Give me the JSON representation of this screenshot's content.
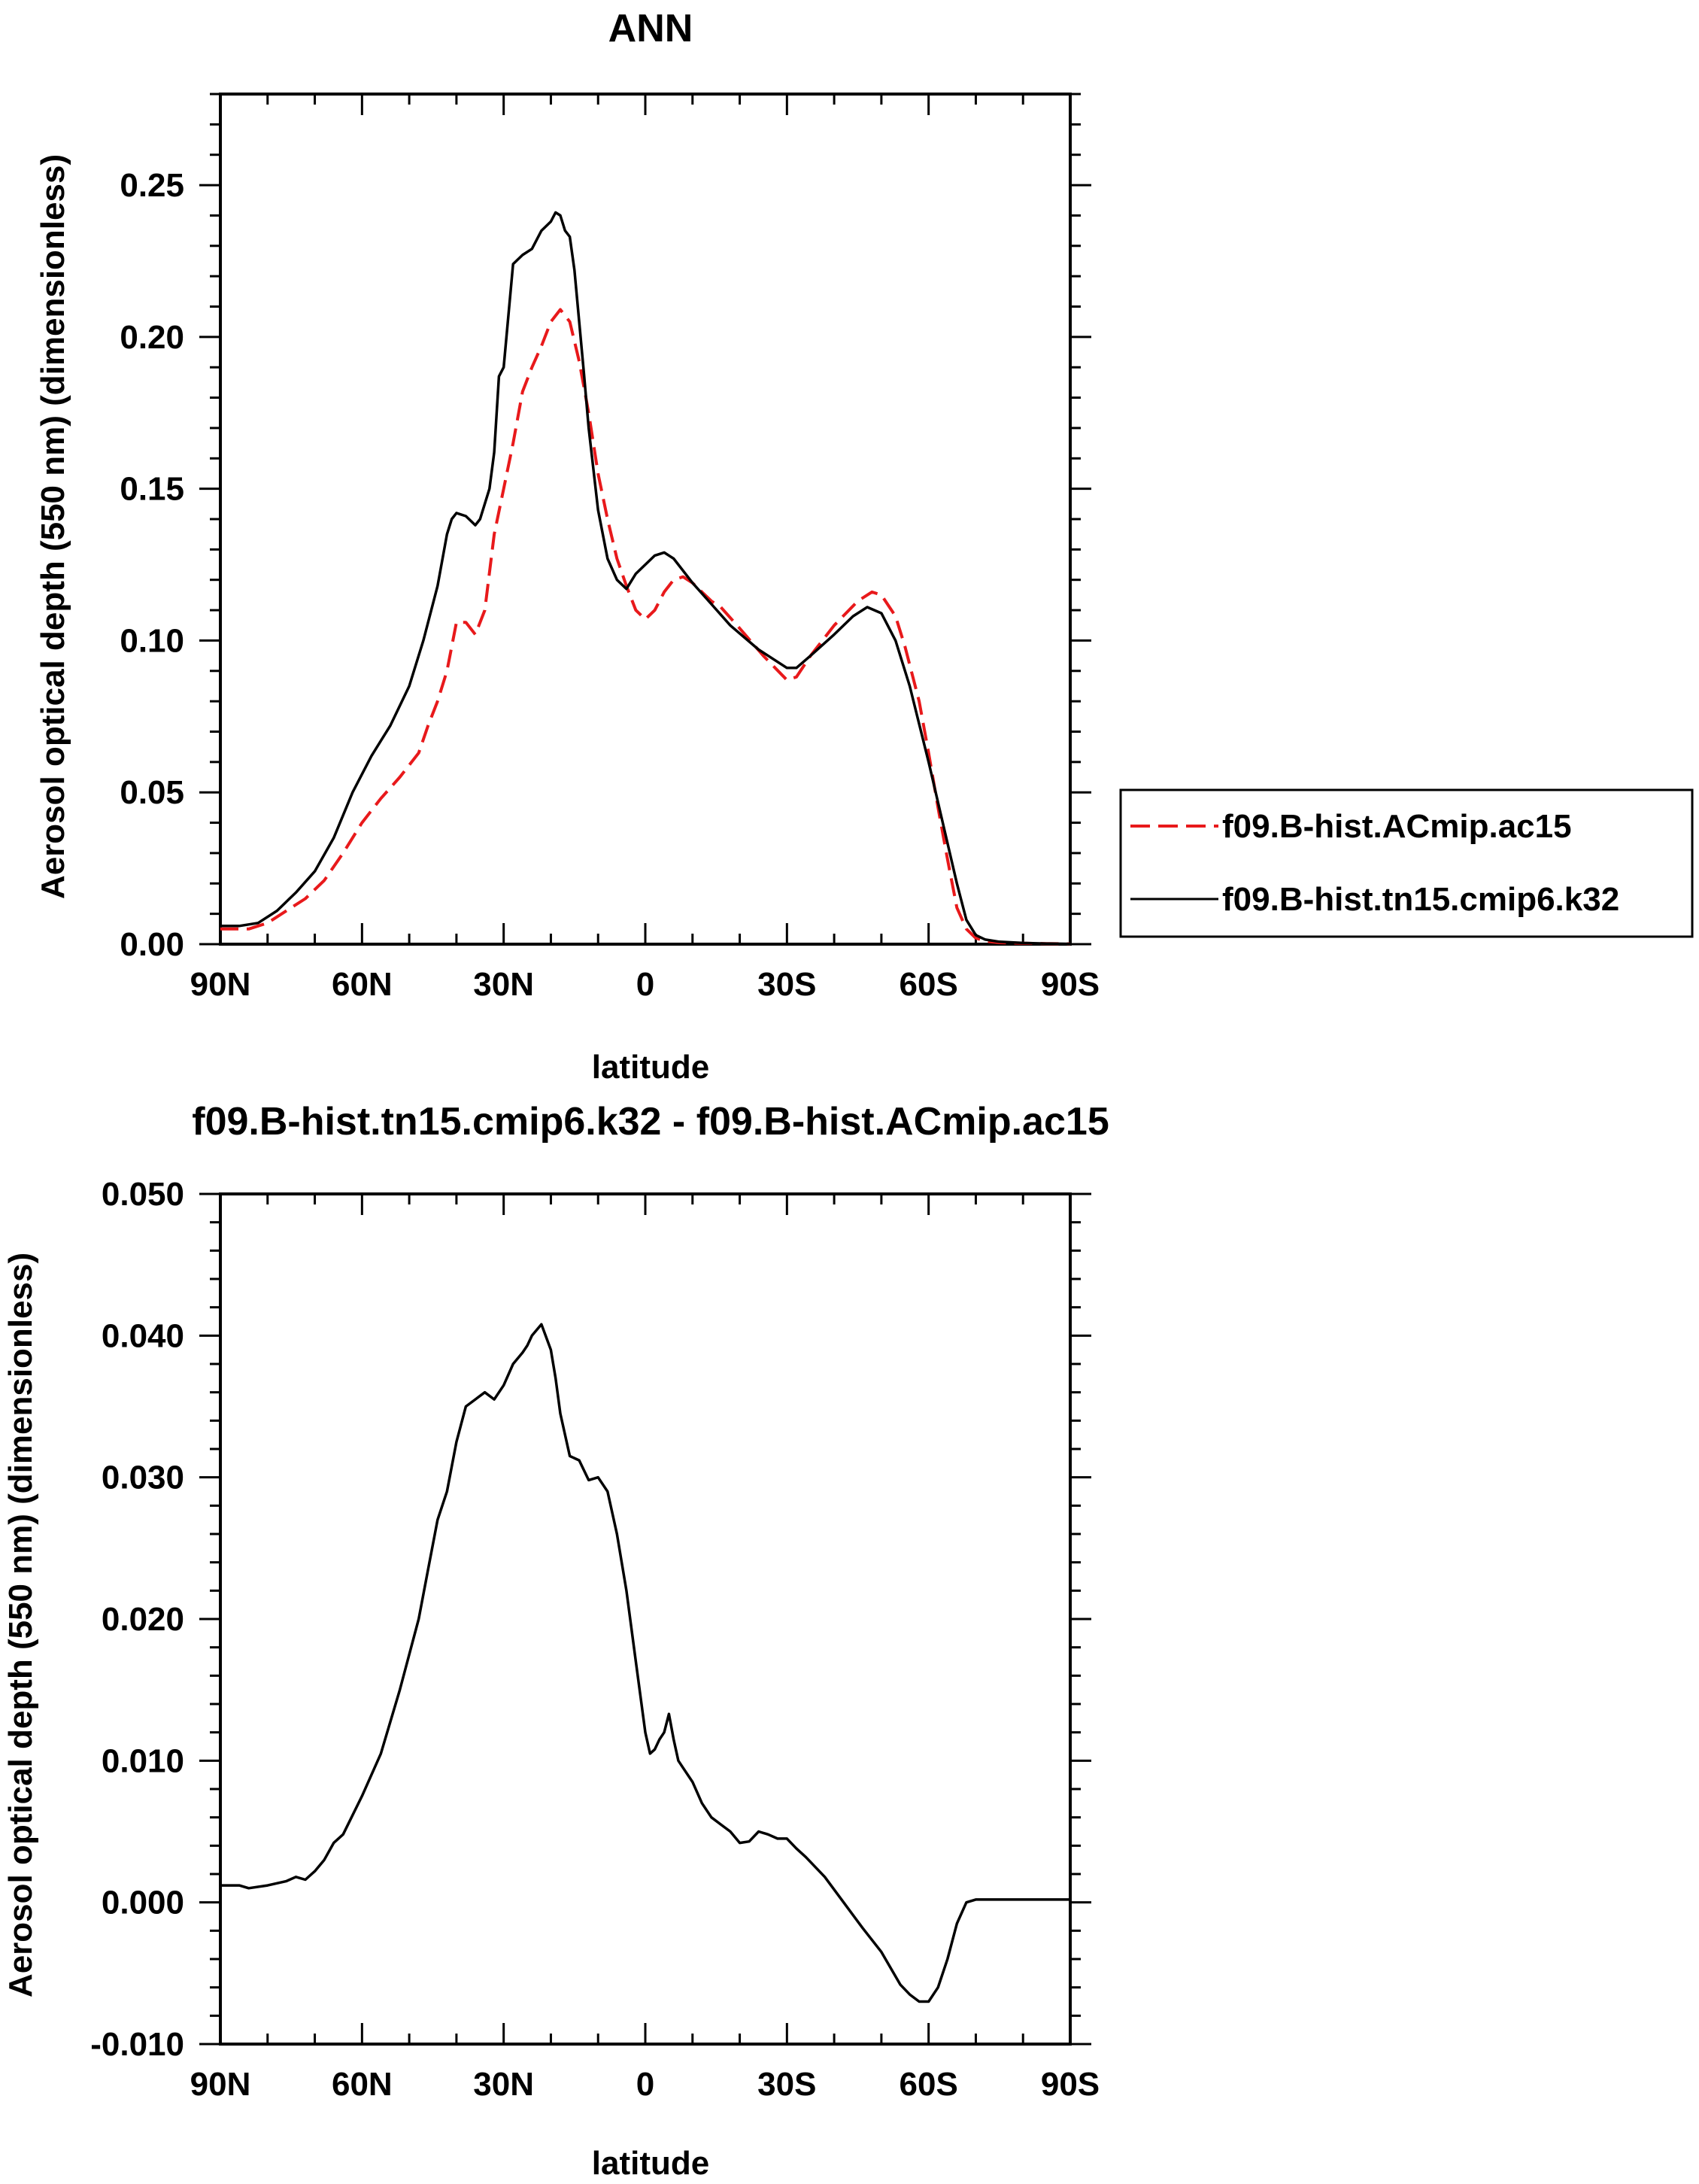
{
  "chart_data": [
    {
      "type": "line",
      "title": "ANN",
      "xlabel": "latitude",
      "ylabel": "Aerosol optical depth (550 nm) (dimensionless)",
      "xlim": [
        90,
        -90
      ],
      "ylim": [
        0,
        0.28
      ],
      "xticks": [
        {
          "value": 90,
          "label": "90N"
        },
        {
          "value": 60,
          "label": "60N"
        },
        {
          "value": 30,
          "label": "30N"
        },
        {
          "value": 0,
          "label": "0"
        },
        {
          "value": -30,
          "label": "30S"
        },
        {
          "value": -60,
          "label": "60S"
        },
        {
          "value": -90,
          "label": "90S"
        }
      ],
      "yticks": [
        {
          "value": 0.0,
          "label": "0.00"
        },
        {
          "value": 0.05,
          "label": "0.05"
        },
        {
          "value": 0.1,
          "label": "0.10"
        },
        {
          "value": 0.15,
          "label": "0.15"
        },
        {
          "value": 0.2,
          "label": "0.20"
        },
        {
          "value": 0.25,
          "label": "0.25"
        }
      ],
      "legend_position": "right",
      "series": [
        {
          "name": "f09.B-hist.ACmip.ac15",
          "color": "#e8191b",
          "dash": "dashed",
          "x": [
            90,
            84,
            80,
            76,
            72,
            68,
            64,
            60,
            56,
            52,
            48,
            46,
            44,
            42,
            40,
            38,
            36,
            34,
            32,
            30,
            28,
            26,
            24,
            22,
            20,
            18,
            16,
            14,
            12,
            10,
            8,
            6,
            4,
            2,
            0,
            -2,
            -4,
            -6,
            -8,
            -10,
            -12,
            -14,
            -16,
            -20,
            -25,
            -30,
            -32,
            -35,
            -40,
            -45,
            -48,
            -50,
            -53,
            -55,
            -58,
            -60,
            -62,
            -64,
            -66,
            -68,
            -70,
            -72,
            -75,
            -80,
            -85,
            -90
          ],
          "values": [
            0.005,
            0.005,
            0.007,
            0.011,
            0.015,
            0.021,
            0.03,
            0.04,
            0.048,
            0.055,
            0.063,
            0.072,
            0.08,
            0.09,
            0.106,
            0.106,
            0.102,
            0.11,
            0.135,
            0.15,
            0.165,
            0.182,
            0.19,
            0.197,
            0.205,
            0.209,
            0.205,
            0.192,
            0.175,
            0.155,
            0.14,
            0.127,
            0.118,
            0.11,
            0.107,
            0.11,
            0.116,
            0.12,
            0.121,
            0.119,
            0.116,
            0.113,
            0.111,
            0.104,
            0.095,
            0.087,
            0.088,
            0.095,
            0.105,
            0.113,
            0.116,
            0.115,
            0.108,
            0.098,
            0.08,
            0.063,
            0.045,
            0.028,
            0.012,
            0.005,
            0.002,
            0.001,
            0.0005,
            0.0003,
            0.0002,
            0.0001
          ]
        },
        {
          "name": "f09.B-hist.tn15.cmip6.k32",
          "color": "#000000",
          "dash": "solid",
          "x": [
            90,
            86,
            82,
            78,
            74,
            70,
            66,
            62,
            58,
            54,
            50,
            47,
            44,
            42,
            41,
            40,
            38,
            36,
            35,
            33,
            32,
            31,
            30,
            28,
            26,
            24,
            22,
            20,
            19,
            18,
            17,
            16,
            15,
            14,
            13,
            12,
            10,
            8,
            6,
            4,
            2,
            0,
            -2,
            -4,
            -6,
            -8,
            -10,
            -14,
            -18,
            -24,
            -30,
            -32,
            -35,
            -40,
            -44,
            -47,
            -50,
            -53,
            -56,
            -60,
            -63,
            -66,
            -68,
            -70,
            -72,
            -75,
            -80,
            -85,
            -90
          ],
          "values": [
            0.006,
            0.006,
            0.007,
            0.011,
            0.017,
            0.024,
            0.035,
            0.05,
            0.062,
            0.072,
            0.085,
            0.1,
            0.118,
            0.135,
            0.14,
            0.142,
            0.141,
            0.138,
            0.14,
            0.15,
            0.162,
            0.187,
            0.19,
            0.224,
            0.227,
            0.229,
            0.235,
            0.238,
            0.241,
            0.24,
            0.235,
            0.233,
            0.222,
            0.205,
            0.188,
            0.17,
            0.143,
            0.127,
            0.12,
            0.117,
            0.122,
            0.125,
            0.128,
            0.129,
            0.127,
            0.123,
            0.119,
            0.112,
            0.105,
            0.097,
            0.091,
            0.091,
            0.095,
            0.102,
            0.108,
            0.111,
            0.109,
            0.1,
            0.085,
            0.06,
            0.04,
            0.02,
            0.008,
            0.003,
            0.0015,
            0.0008,
            0.0004,
            0.0002,
            0.0001
          ]
        }
      ]
    },
    {
      "type": "line",
      "title": "f09.B-hist.tn15.cmip6.k32 - f09.B-hist.ACmip.ac15",
      "xlabel": "latitude",
      "ylabel": "Aerosol optical depth (550 nm) (dimensionless)",
      "xlim": [
        90,
        -90
      ],
      "ylim": [
        -0.01,
        0.05
      ],
      "xticks": [
        {
          "value": 90,
          "label": "90N"
        },
        {
          "value": 60,
          "label": "60N"
        },
        {
          "value": 30,
          "label": "30N"
        },
        {
          "value": 0,
          "label": "0"
        },
        {
          "value": -30,
          "label": "30S"
        },
        {
          "value": -60,
          "label": "60S"
        },
        {
          "value": -90,
          "label": "90S"
        }
      ],
      "yticks": [
        {
          "value": -0.01,
          "label": "-0.010"
        },
        {
          "value": 0.0,
          "label": "0.000"
        },
        {
          "value": 0.01,
          "label": "0.010"
        },
        {
          "value": 0.02,
          "label": "0.020"
        },
        {
          "value": 0.03,
          "label": "0.030"
        },
        {
          "value": 0.04,
          "label": "0.040"
        },
        {
          "value": 0.05,
          "label": "0.050"
        }
      ],
      "series": [
        {
          "name": "f09.B-hist.tn15.cmip6.k32 - f09.B-hist.ACmip.ac15",
          "color": "#000000",
          "dash": "solid",
          "x": [
            90,
            86,
            84,
            80,
            76,
            74,
            72,
            70,
            68,
            66,
            64,
            60,
            56,
            52,
            48,
            46,
            44,
            42,
            40,
            38,
            36,
            34,
            32,
            30,
            28,
            26,
            25,
            24,
            22,
            20,
            19,
            18,
            16,
            14,
            13,
            12,
            10,
            8,
            6,
            4,
            2,
            0,
            -1,
            -2,
            -3,
            -4,
            -5,
            -6,
            -7,
            -8,
            -10,
            -12,
            -14,
            -16,
            -18,
            -20,
            -22,
            -24,
            -26,
            -28,
            -30,
            -32,
            -34,
            -38,
            -42,
            -46,
            -50,
            -54,
            -56,
            -58,
            -60,
            -62,
            -64,
            -66,
            -68,
            -70,
            -72,
            -76,
            -80,
            -85,
            -90
          ],
          "values": [
            0.0012,
            0.0012,
            0.001,
            0.0012,
            0.0015,
            0.0018,
            0.0016,
            0.0022,
            0.003,
            0.0042,
            0.0048,
            0.0075,
            0.0105,
            0.015,
            0.02,
            0.0235,
            0.027,
            0.029,
            0.0325,
            0.035,
            0.0355,
            0.036,
            0.0355,
            0.0365,
            0.038,
            0.0388,
            0.0393,
            0.04,
            0.0408,
            0.039,
            0.037,
            0.0345,
            0.0315,
            0.0312,
            0.0305,
            0.0298,
            0.03,
            0.029,
            0.026,
            0.022,
            0.017,
            0.012,
            0.0105,
            0.0108,
            0.0115,
            0.012,
            0.0133,
            0.0115,
            0.01,
            0.0095,
            0.0085,
            0.007,
            0.006,
            0.0055,
            0.005,
            0.0042,
            0.0043,
            0.005,
            0.0048,
            0.0045,
            0.0045,
            0.0038,
            0.0032,
            0.0018,
            0.0,
            -0.0018,
            -0.0035,
            -0.0058,
            -0.0065,
            -0.007,
            -0.007,
            -0.006,
            -0.004,
            -0.0015,
            0.0,
            0.0002,
            0.0002,
            0.0002,
            0.0002,
            0.0002,
            0.0002
          ]
        }
      ]
    }
  ]
}
